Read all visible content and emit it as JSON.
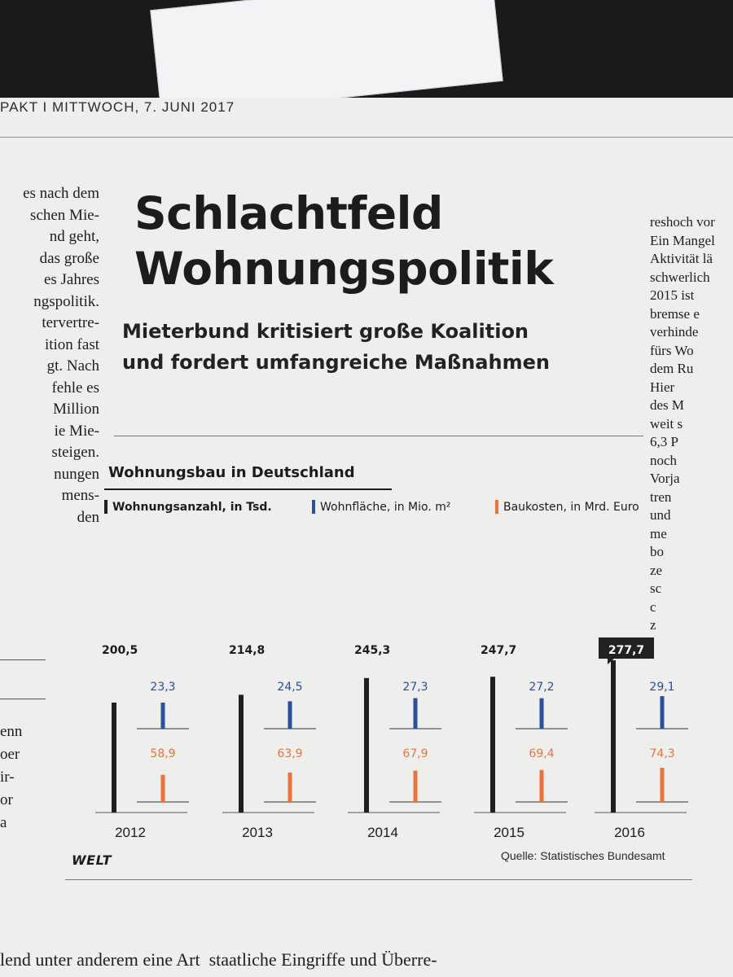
{
  "dateline": "PAKT I MITTWOCH, 7. JUNI 2017",
  "headline": {
    "line1": "Schlachtfeld",
    "line2": "Wohnungspolitik"
  },
  "subhead": {
    "line1": "Mieterbund kritisiert große Koalition",
    "line2": "und fordert umfangreiche Maßnahmen"
  },
  "left_column": [
    "es nach dem",
    "schen Mie-",
    "nd geht,",
    "das große",
    "es Jahres",
    "ngspolitik.",
    "tervertre-",
    "ition fast",
    "gt. Nach",
    "fehle es",
    "Million",
    "ie Mie-",
    "steigen.",
    "nungen",
    "mens-",
    "den"
  ],
  "left_column_lower": [
    "enn",
    "oer",
    "ir-",
    "or",
    "a"
  ],
  "right_column": [
    "reshoch vor",
    "Ein Mangel",
    "Aktivität lä",
    "schwerlich",
    "2015 ist",
    "bremse e",
    "verhinde",
    "fürs Wo",
    "dem Ru",
    "Hier",
    "des M",
    "weit s",
    "6,3 P",
    "noch",
    "Vorja",
    "tren",
    "und",
    "me",
    "bo",
    "ze",
    "sc",
    "c",
    "z"
  ],
  "bottom_text": "lend unter anderem eine Art  staatliche Eingriffe und Überre-",
  "colors": {
    "count": "#1f1f1f",
    "area": "#2b4f9a",
    "cost": "#e8743b"
  },
  "chart_data": {
    "type": "bar",
    "title": "Wohnungsbau in Deutschland",
    "categories": [
      "2012",
      "2013",
      "2014",
      "2015",
      "2016"
    ],
    "series": [
      {
        "name": "Wohnungsanzahl, in Tsd.",
        "values": [
          200.5,
          214.8,
          245.3,
          247.7,
          277.7
        ],
        "labels": [
          "200,5",
          "214,8",
          "245,3",
          "247,7",
          "277,7"
        ]
      },
      {
        "name": "Wohnfläche, in Mio. m²",
        "values": [
          23.3,
          24.5,
          27.3,
          27.2,
          29.1
        ],
        "labels": [
          "23,3",
          "24,5",
          "27,3",
          "27,2",
          "29,1"
        ]
      },
      {
        "name": "Baukosten, in Mrd. Euro",
        "values": [
          58.9,
          63.9,
          67.9,
          69.4,
          74.3
        ],
        "labels": [
          "58,9",
          "63,9",
          "67,9",
          "69,4",
          "74,3"
        ]
      }
    ],
    "highlight_category": "2016",
    "source": "Quelle: Statistisches Bundesamt",
    "brand": "WELT"
  }
}
